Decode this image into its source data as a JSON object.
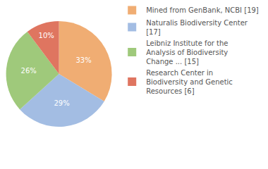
{
  "chart_data": {
    "type": "pie",
    "categories": [
      "Mined from GenBank, NCBI [19]",
      "Naturalis Biodiversity Center [17]",
      "Leibniz Institute for the Analysis of Biodiversity Change ... [15]",
      "Research Center in Biodiversity and Genetic Resources [6]"
    ],
    "values": [
      33,
      29,
      26,
      10
    ],
    "value_labels": [
      "33%",
      "29%",
      "26%",
      "10%"
    ],
    "colors": [
      "#f0ad73",
      "#a3bde3",
      "#9fc97b",
      "#df7560"
    ],
    "data_labels": true,
    "legend": "right"
  }
}
